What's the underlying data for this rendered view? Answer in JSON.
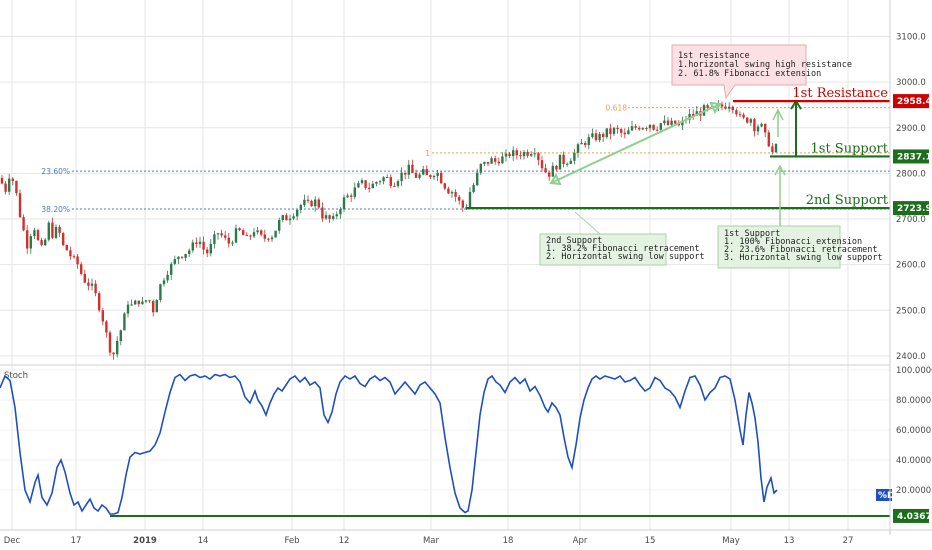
{
  "chart_data": [
    {
      "type": "candlestick",
      "title": "",
      "ylim": [
        2380,
        3180
      ],
      "y_ticks": [
        "2400.0",
        "2500.0",
        "2600.0",
        "2700.0",
        "2800.0",
        "2900.0",
        "3000.0",
        "3100.0"
      ],
      "x_ticks": [
        "Dec",
        "17",
        "2019",
        "14",
        "Feb",
        "12",
        "Mar",
        "18",
        "Apr",
        "15",
        "May",
        "13",
        "27"
      ],
      "price_path": [
        [
          0,
          2790
        ],
        [
          5,
          2760
        ],
        [
          10,
          2805
        ],
        [
          15,
          2770
        ],
        [
          20,
          2710
        ],
        [
          25,
          2660
        ],
        [
          28,
          2640
        ],
        [
          33,
          2695
        ],
        [
          38,
          2650
        ],
        [
          43,
          2625
        ],
        [
          48,
          2690
        ],
        [
          53,
          2665
        ],
        [
          58,
          2680
        ],
        [
          63,
          2640
        ],
        [
          68,
          2630
        ],
        [
          73,
          2610
        ],
        [
          78,
          2600
        ],
        [
          83,
          2570
        ],
        [
          88,
          2560
        ],
        [
          93,
          2545
        ],
        [
          98,
          2520
        ],
        [
          103,
          2480
        ],
        [
          108,
          2430
        ],
        [
          113,
          2400
        ],
        [
          118,
          2440
        ],
        [
          123,
          2470
        ],
        [
          128,
          2520
        ],
        [
          133,
          2505
        ],
        [
          138,
          2525
        ],
        [
          143,
          2510
        ],
        [
          148,
          2530
        ],
        [
          153,
          2500
        ],
        [
          158,
          2540
        ],
        [
          163,
          2570
        ],
        [
          168,
          2590
        ],
        [
          173,
          2600
        ],
        [
          178,
          2620
        ],
        [
          183,
          2625
        ],
        [
          188,
          2630
        ],
        [
          193,
          2640
        ],
        [
          198,
          2660
        ],
        [
          203,
          2635
        ],
        [
          208,
          2625
        ],
        [
          213,
          2650
        ],
        [
          218,
          2670
        ],
        [
          223,
          2660
        ],
        [
          228,
          2645
        ],
        [
          233,
          2660
        ],
        [
          238,
          2675
        ],
        [
          243,
          2665
        ],
        [
          248,
          2650
        ],
        [
          253,
          2680
        ],
        [
          258,
          2665
        ],
        [
          263,
          2655
        ],
        [
          268,
          2665
        ],
        [
          273,
          2665
        ],
        [
          278,
          2690
        ],
        [
          283,
          2700
        ],
        [
          288,
          2705
        ],
        [
          293,
          2715
        ],
        [
          298,
          2725
        ],
        [
          303,
          2735
        ],
        [
          308,
          2730
        ],
        [
          313,
          2740
        ],
        [
          318,
          2735
        ],
        [
          323,
          2705
        ],
        [
          328,
          2700
        ],
        [
          333,
          2695
        ],
        [
          338,
          2720
        ],
        [
          343,
          2740
        ],
        [
          348,
          2750
        ],
        [
          353,
          2760
        ],
        [
          358,
          2770
        ],
        [
          363,
          2778
        ],
        [
          368,
          2770
        ],
        [
          373,
          2775
        ],
        [
          378,
          2785
        ],
        [
          383,
          2790
        ],
        [
          388,
          2788
        ],
        [
          393,
          2780
        ],
        [
          398,
          2792
        ],
        [
          403,
          2800
        ],
        [
          408,
          2810
        ],
        [
          413,
          2798
        ],
        [
          418,
          2792
        ],
        [
          423,
          2800
        ],
        [
          428,
          2790
        ],
        [
          433,
          2805
        ],
        [
          438,
          2800
        ],
        [
          443,
          2780
        ],
        [
          448,
          2765
        ],
        [
          453,
          2760
        ],
        [
          458,
          2740
        ],
        [
          463,
          2725
        ],
        [
          466,
          2728
        ],
        [
          470,
          2760
        ],
        [
          475,
          2780
        ],
        [
          480,
          2815
        ],
        [
          485,
          2820
        ],
        [
          490,
          2830
        ],
        [
          495,
          2825
        ],
        [
          500,
          2835
        ],
        [
          505,
          2830
        ],
        [
          510,
          2845
        ],
        [
          515,
          2840
        ],
        [
          520,
          2845
        ],
        [
          525,
          2845
        ],
        [
          530,
          2850
        ],
        [
          535,
          2855
        ],
        [
          540,
          2825
        ],
        [
          545,
          2805
        ],
        [
          550,
          2800
        ],
        [
          555,
          2815
        ],
        [
          560,
          2830
        ],
        [
          565,
          2825
        ],
        [
          570,
          2835
        ],
        [
          575,
          2845
        ],
        [
          580,
          2860
        ],
        [
          585,
          2870
        ],
        [
          590,
          2875
        ],
        [
          595,
          2880
        ],
        [
          600,
          2880
        ],
        [
          605,
          2888
        ],
        [
          610,
          2890
        ],
        [
          615,
          2895
        ],
        [
          620,
          2890
        ],
        [
          625,
          2880
        ],
        [
          630,
          2895
        ],
        [
          635,
          2900
        ],
        [
          640,
          2905
        ],
        [
          645,
          2905
        ],
        [
          650,
          2910
        ],
        [
          655,
          2900
        ],
        [
          660,
          2910
        ],
        [
          665,
          2908
        ],
        [
          670,
          2905
        ],
        [
          675,
          2910
        ],
        [
          680,
          2900
        ],
        [
          685,
          2920
        ],
        [
          690,
          2925
        ],
        [
          695,
          2930
        ],
        [
          700,
          2935
        ],
        [
          705,
          2940
        ],
        [
          710,
          2935
        ],
        [
          715,
          2940
        ],
        [
          720,
          2945
        ],
        [
          725,
          2950
        ],
        [
          730,
          2955
        ],
        [
          735,
          2945
        ],
        [
          740,
          2920
        ],
        [
          745,
          2915
        ],
        [
          750,
          2925
        ],
        [
          755,
          2900
        ],
        [
          760,
          2910
        ],
        [
          765,
          2880
        ],
        [
          770,
          2865
        ],
        [
          773,
          2840
        ],
        [
          776,
          2855
        ],
        [
          779,
          2875
        ]
      ],
      "stoch_ylim": [
        0,
        100
      ],
      "stoch_y_ticks": [
        "100.0000",
        "80.0000",
        "60.0000",
        "40.0000",
        "20.0000"
      ],
      "stoch_series": [
        [
          0,
          88
        ],
        [
          5,
          96
        ],
        [
          10,
          93
        ],
        [
          15,
          75
        ],
        [
          20,
          45
        ],
        [
          25,
          20
        ],
        [
          30,
          12
        ],
        [
          35,
          25
        ],
        [
          38,
          30
        ],
        [
          42,
          15
        ],
        [
          47,
          10
        ],
        [
          52,
          18
        ],
        [
          57,
          35
        ],
        [
          61,
          40
        ],
        [
          65,
          32
        ],
        [
          70,
          18
        ],
        [
          74,
          10
        ],
        [
          78,
          12
        ],
        [
          82,
          6
        ],
        [
          86,
          10
        ],
        [
          90,
          14
        ],
        [
          94,
          8
        ],
        [
          98,
          6
        ],
        [
          102,
          10
        ],
        [
          106,
          8
        ],
        [
          110,
          4
        ],
        [
          114,
          4
        ],
        [
          118,
          5
        ],
        [
          122,
          15
        ],
        [
          126,
          30
        ],
        [
          130,
          42
        ],
        [
          135,
          45
        ],
        [
          140,
          44
        ],
        [
          145,
          45
        ],
        [
          150,
          46
        ],
        [
          155,
          50
        ],
        [
          160,
          58
        ],
        [
          165,
          72
        ],
        [
          170,
          85
        ],
        [
          175,
          95
        ],
        [
          180,
          97
        ],
        [
          185,
          93
        ],
        [
          190,
          96
        ],
        [
          195,
          97
        ],
        [
          200,
          95
        ],
        [
          205,
          96
        ],
        [
          210,
          94
        ],
        [
          215,
          97
        ],
        [
          220,
          96
        ],
        [
          225,
          97
        ],
        [
          230,
          95
        ],
        [
          235,
          96
        ],
        [
          240,
          92
        ],
        [
          245,
          82
        ],
        [
          250,
          78
        ],
        [
          255,
          86
        ],
        [
          258,
          80
        ],
        [
          262,
          76
        ],
        [
          266,
          70
        ],
        [
          270,
          78
        ],
        [
          274,
          84
        ],
        [
          278,
          88
        ],
        [
          282,
          86
        ],
        [
          286,
          90
        ],
        [
          290,
          94
        ],
        [
          295,
          96
        ],
        [
          300,
          92
        ],
        [
          305,
          95
        ],
        [
          310,
          90
        ],
        [
          315,
          92
        ],
        [
          320,
          88
        ],
        [
          324,
          70
        ],
        [
          328,
          65
        ],
        [
          332,
          72
        ],
        [
          336,
          84
        ],
        [
          340,
          92
        ],
        [
          345,
          96
        ],
        [
          350,
          94
        ],
        [
          355,
          96
        ],
        [
          360,
          91
        ],
        [
          365,
          89
        ],
        [
          370,
          94
        ],
        [
          375,
          96
        ],
        [
          380,
          93
        ],
        [
          385,
          95
        ],
        [
          390,
          92
        ],
        [
          395,
          84
        ],
        [
          400,
          88
        ],
        [
          405,
          92
        ],
        [
          410,
          88
        ],
        [
          415,
          84
        ],
        [
          420,
          90
        ],
        [
          425,
          92
        ],
        [
          430,
          88
        ],
        [
          435,
          84
        ],
        [
          440,
          78
        ],
        [
          445,
          55
        ],
        [
          450,
          35
        ],
        [
          455,
          18
        ],
        [
          460,
          8
        ],
        [
          465,
          5
        ],
        [
          468,
          6
        ],
        [
          472,
          20
        ],
        [
          476,
          45
        ],
        [
          480,
          70
        ],
        [
          484,
          85
        ],
        [
          488,
          94
        ],
        [
          492,
          96
        ],
        [
          496,
          92
        ],
        [
          500,
          90
        ],
        [
          505,
          85
        ],
        [
          510,
          92
        ],
        [
          515,
          95
        ],
        [
          520,
          91
        ],
        [
          525,
          94
        ],
        [
          530,
          86
        ],
        [
          535,
          89
        ],
        [
          540,
          83
        ],
        [
          545,
          75
        ],
        [
          548,
          72
        ],
        [
          552,
          78
        ],
        [
          556,
          75
        ],
        [
          560,
          70
        ],
        [
          564,
          55
        ],
        [
          568,
          42
        ],
        [
          572,
          35
        ],
        [
          576,
          50
        ],
        [
          580,
          68
        ],
        [
          584,
          80
        ],
        [
          588,
          88
        ],
        [
          592,
          94
        ],
        [
          596,
          96
        ],
        [
          600,
          94
        ],
        [
          605,
          96
        ],
        [
          610,
          95
        ],
        [
          615,
          94
        ],
        [
          620,
          96
        ],
        [
          625,
          92
        ],
        [
          630,
          93
        ],
        [
          635,
          95
        ],
        [
          640,
          90
        ],
        [
          645,
          86
        ],
        [
          650,
          88
        ],
        [
          655,
          95
        ],
        [
          660,
          93
        ],
        [
          665,
          88
        ],
        [
          670,
          86
        ],
        [
          675,
          82
        ],
        [
          680,
          75
        ],
        [
          685,
          86
        ],
        [
          690,
          95
        ],
        [
          695,
          96
        ],
        [
          700,
          90
        ],
        [
          705,
          80
        ],
        [
          710,
          85
        ],
        [
          715,
          88
        ],
        [
          720,
          95
        ],
        [
          725,
          96
        ],
        [
          730,
          94
        ],
        [
          735,
          80
        ],
        [
          740,
          60
        ],
        [
          743,
          50
        ],
        [
          746,
          70
        ],
        [
          749,
          85
        ],
        [
          752,
          78
        ],
        [
          755,
          68
        ],
        [
          758,
          52
        ],
        [
          761,
          28
        ],
        [
          764,
          12
        ],
        [
          767,
          22
        ],
        [
          771,
          28
        ],
        [
          774,
          18
        ],
        [
          777,
          20
        ]
      ],
      "stoch_min_label": "4.0367",
      "stoch_pane_label": "Stoch",
      "stoch_badge_label": "%D"
    }
  ],
  "levels": {
    "resistance_1": {
      "label": "1st Resistance",
      "price": 2958.4,
      "tag": "2958.4",
      "color": "#cc0000"
    },
    "support_1": {
      "label": "1st Support",
      "price": 2837.1,
      "tag": "2837.1",
      "color": "#1b6e1b"
    },
    "support_2": {
      "label": "2nd Support",
      "price": 2723.9,
      "tag": "2723.9",
      "color": "#1b6e1b"
    }
  },
  "fib": {
    "level_0618": {
      "label": "0.618",
      "price": 2944
    },
    "level_1": {
      "label": "1",
      "price": 2845
    },
    "level_236": {
      "label": "23.60%",
      "price": 2805
    },
    "level_382": {
      "label": "38.20%",
      "price": 2722
    }
  },
  "annotations": {
    "resistance_box": [
      "1st resistance",
      "1.horizontal swing high resistance",
      "2. 61.8% Fibonacci extension"
    ],
    "support2_box": [
      "2nd Support",
      "1. 38.2% Fibonacci retracement",
      "2. Horizontal swing low support"
    ],
    "support1_box": [
      "1st Support",
      "1. 100% Fibonacci extension",
      "2. 23.6% Fibonacci retracement",
      "3. Horizontal swing low support"
    ]
  },
  "colors": {
    "up": "#2b7a4b",
    "down": "#d0312d",
    "stoch_line": "#1f4fbf",
    "grid": "#e6e6e6",
    "fib_orange": "#e8a04a",
    "fib_blue": "#4a7bd0",
    "arrow_green": "#8fcf8f"
  }
}
